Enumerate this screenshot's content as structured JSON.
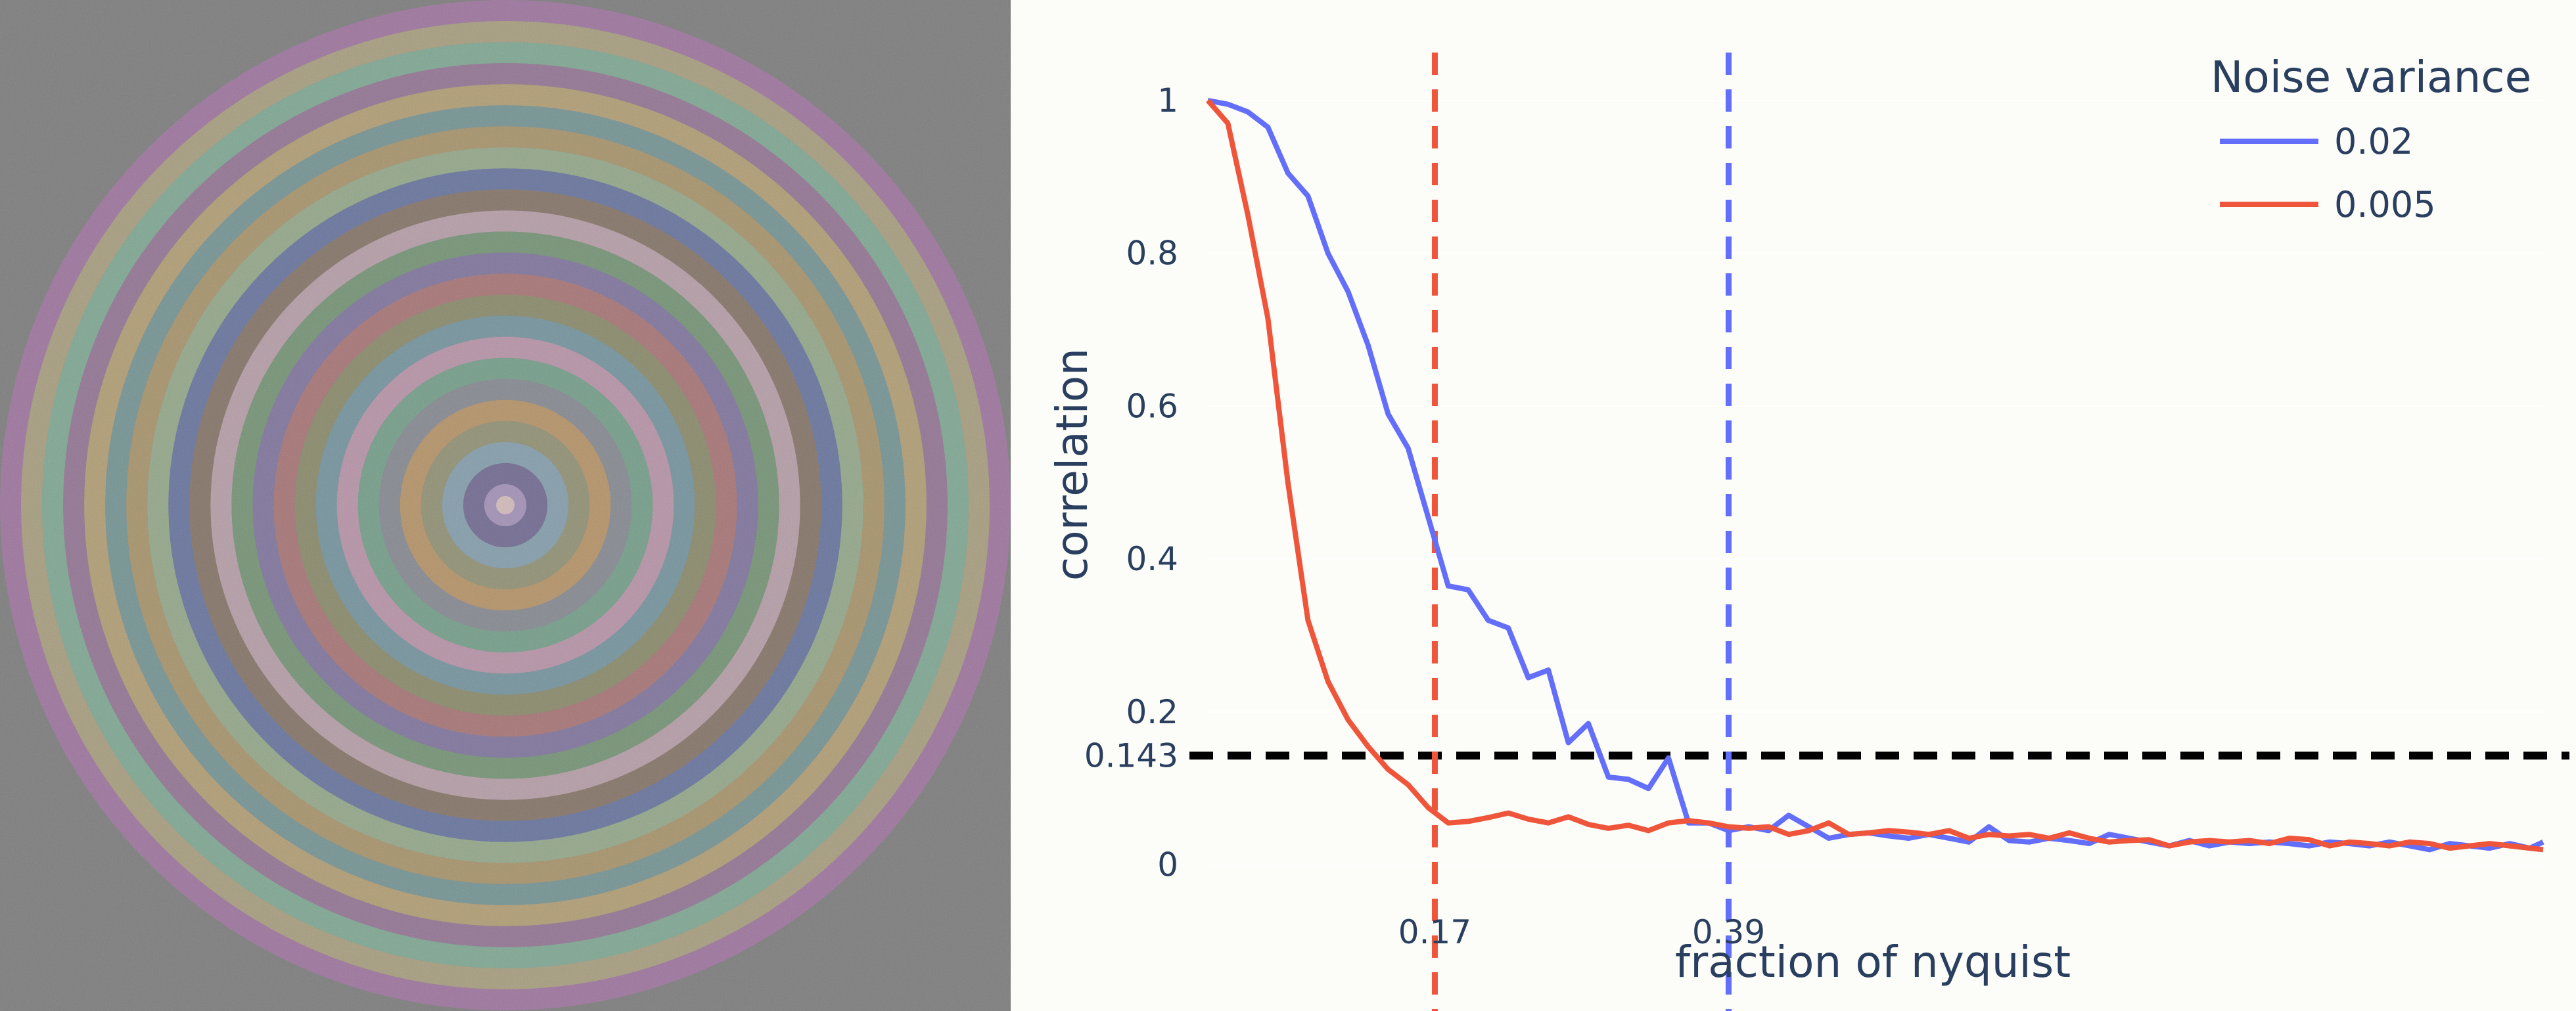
{
  "fsc_rings": {
    "count": 24,
    "max_radius_fraction": 0.5,
    "background_color": "#7c7c7c",
    "colors": [
      "#b99cd8",
      "#6b5f9e",
      "#88b0c8",
      "#9c9c70",
      "#d5a05c",
      "#8c8f9c",
      "#70b090",
      "#d8a0c0",
      "#6fa0b0",
      "#909060",
      "#c07070",
      "#8070b0",
      "#6fa070",
      "#d6b0c0",
      "#8a6f5a",
      "#5a6fb0",
      "#a0c090",
      "#c0a060",
      "#70a0a0",
      "#d0b070",
      "#a070a0",
      "#80c0a0",
      "#c0b080",
      "#b070b0"
    ]
  },
  "chart_data": {
    "type": "line",
    "xlabel": "fraction of nyquist",
    "ylabel": "correlation",
    "xlim": [
      0,
      1
    ],
    "ylim": [
      -0.02,
      1.03
    ],
    "y_tick_labels": [
      "0",
      "0.2",
      "0.4",
      "0.6",
      "0.8",
      "1"
    ],
    "y_tick_values": [
      0,
      0.2,
      0.4,
      0.6,
      0.8,
      1.0
    ],
    "threshold": {
      "value": 0.143,
      "label": "0.143",
      "color": "#000000"
    },
    "vlines": [
      {
        "value": 0.17,
        "label": "0.17",
        "color": "#EF553B"
      },
      {
        "value": 0.39,
        "label": "0.39",
        "color": "#636EFA"
      }
    ],
    "legend": {
      "title": "Noise variance",
      "position": "top-right"
    },
    "grid": true,
    "series": [
      {
        "name": "0.02",
        "color": "#636EFA",
        "x": [
          0,
          0.015,
          0.03,
          0.045,
          0.06,
          0.075,
          0.09,
          0.105,
          0.12,
          0.135,
          0.15,
          0.165,
          0.18,
          0.195,
          0.21,
          0.225,
          0.24,
          0.255,
          0.27,
          0.285,
          0.3,
          0.315,
          0.33,
          0.345,
          0.36,
          0.375,
          0.39,
          0.405,
          0.42,
          0.435,
          0.45,
          0.465,
          0.48,
          0.495,
          0.51,
          0.525,
          0.54,
          0.555,
          0.57,
          0.585,
          0.6,
          0.615,
          0.63,
          0.645,
          0.66,
          0.675,
          0.69,
          0.705,
          0.72,
          0.735,
          0.75,
          0.765,
          0.78,
          0.795,
          0.81,
          0.825,
          0.84,
          0.855,
          0.87,
          0.885,
          0.9,
          0.915,
          0.93,
          0.945,
          0.96,
          0.975,
          0.99,
          1.0
        ],
        "y": [
          1.0,
          0.995,
          0.985,
          0.965,
          0.905,
          0.875,
          0.8,
          0.75,
          0.68,
          0.59,
          0.545,
          0.455,
          0.365,
          0.36,
          0.32,
          0.31,
          0.245,
          0.255,
          0.16,
          0.185,
          0.115,
          0.112,
          0.1,
          0.14,
          0.055,
          0.055,
          0.045,
          0.05,
          0.045,
          0.065,
          0.05,
          0.035,
          0.04,
          0.042,
          0.038,
          0.035,
          0.04,
          0.035,
          0.03,
          0.05,
          0.032,
          0.03,
          0.035,
          0.032,
          0.028,
          0.04,
          0.035,
          0.03,
          0.025,
          0.032,
          0.025,
          0.03,
          0.028,
          0.03,
          0.028,
          0.025,
          0.03,
          0.028,
          0.025,
          0.03,
          0.025,
          0.02,
          0.028,
          0.025,
          0.022,
          0.028,
          0.022,
          0.03
        ]
      },
      {
        "name": "0.005",
        "color": "#EF553B",
        "x": [
          0,
          0.015,
          0.03,
          0.045,
          0.06,
          0.075,
          0.09,
          0.105,
          0.12,
          0.135,
          0.15,
          0.165,
          0.18,
          0.195,
          0.21,
          0.225,
          0.24,
          0.255,
          0.27,
          0.285,
          0.3,
          0.315,
          0.33,
          0.345,
          0.36,
          0.375,
          0.39,
          0.405,
          0.42,
          0.435,
          0.45,
          0.465,
          0.48,
          0.495,
          0.51,
          0.525,
          0.54,
          0.555,
          0.57,
          0.585,
          0.6,
          0.615,
          0.63,
          0.645,
          0.66,
          0.675,
          0.69,
          0.705,
          0.72,
          0.735,
          0.75,
          0.765,
          0.78,
          0.795,
          0.81,
          0.825,
          0.84,
          0.855,
          0.87,
          0.885,
          0.9,
          0.915,
          0.93,
          0.945,
          0.96,
          0.975,
          0.99,
          1.0
        ],
        "y": [
          1.0,
          0.97,
          0.85,
          0.715,
          0.5,
          0.32,
          0.24,
          0.19,
          0.155,
          0.125,
          0.105,
          0.075,
          0.055,
          0.057,
          0.062,
          0.068,
          0.06,
          0.055,
          0.063,
          0.053,
          0.048,
          0.052,
          0.045,
          0.055,
          0.058,
          0.055,
          0.05,
          0.048,
          0.05,
          0.04,
          0.045,
          0.055,
          0.04,
          0.042,
          0.045,
          0.043,
          0.04,
          0.045,
          0.035,
          0.04,
          0.038,
          0.04,
          0.035,
          0.042,
          0.035,
          0.03,
          0.032,
          0.033,
          0.025,
          0.03,
          0.032,
          0.03,
          0.032,
          0.028,
          0.035,
          0.033,
          0.025,
          0.03,
          0.028,
          0.025,
          0.03,
          0.028,
          0.022,
          0.025,
          0.028,
          0.025,
          0.022,
          0.02
        ]
      }
    ]
  }
}
